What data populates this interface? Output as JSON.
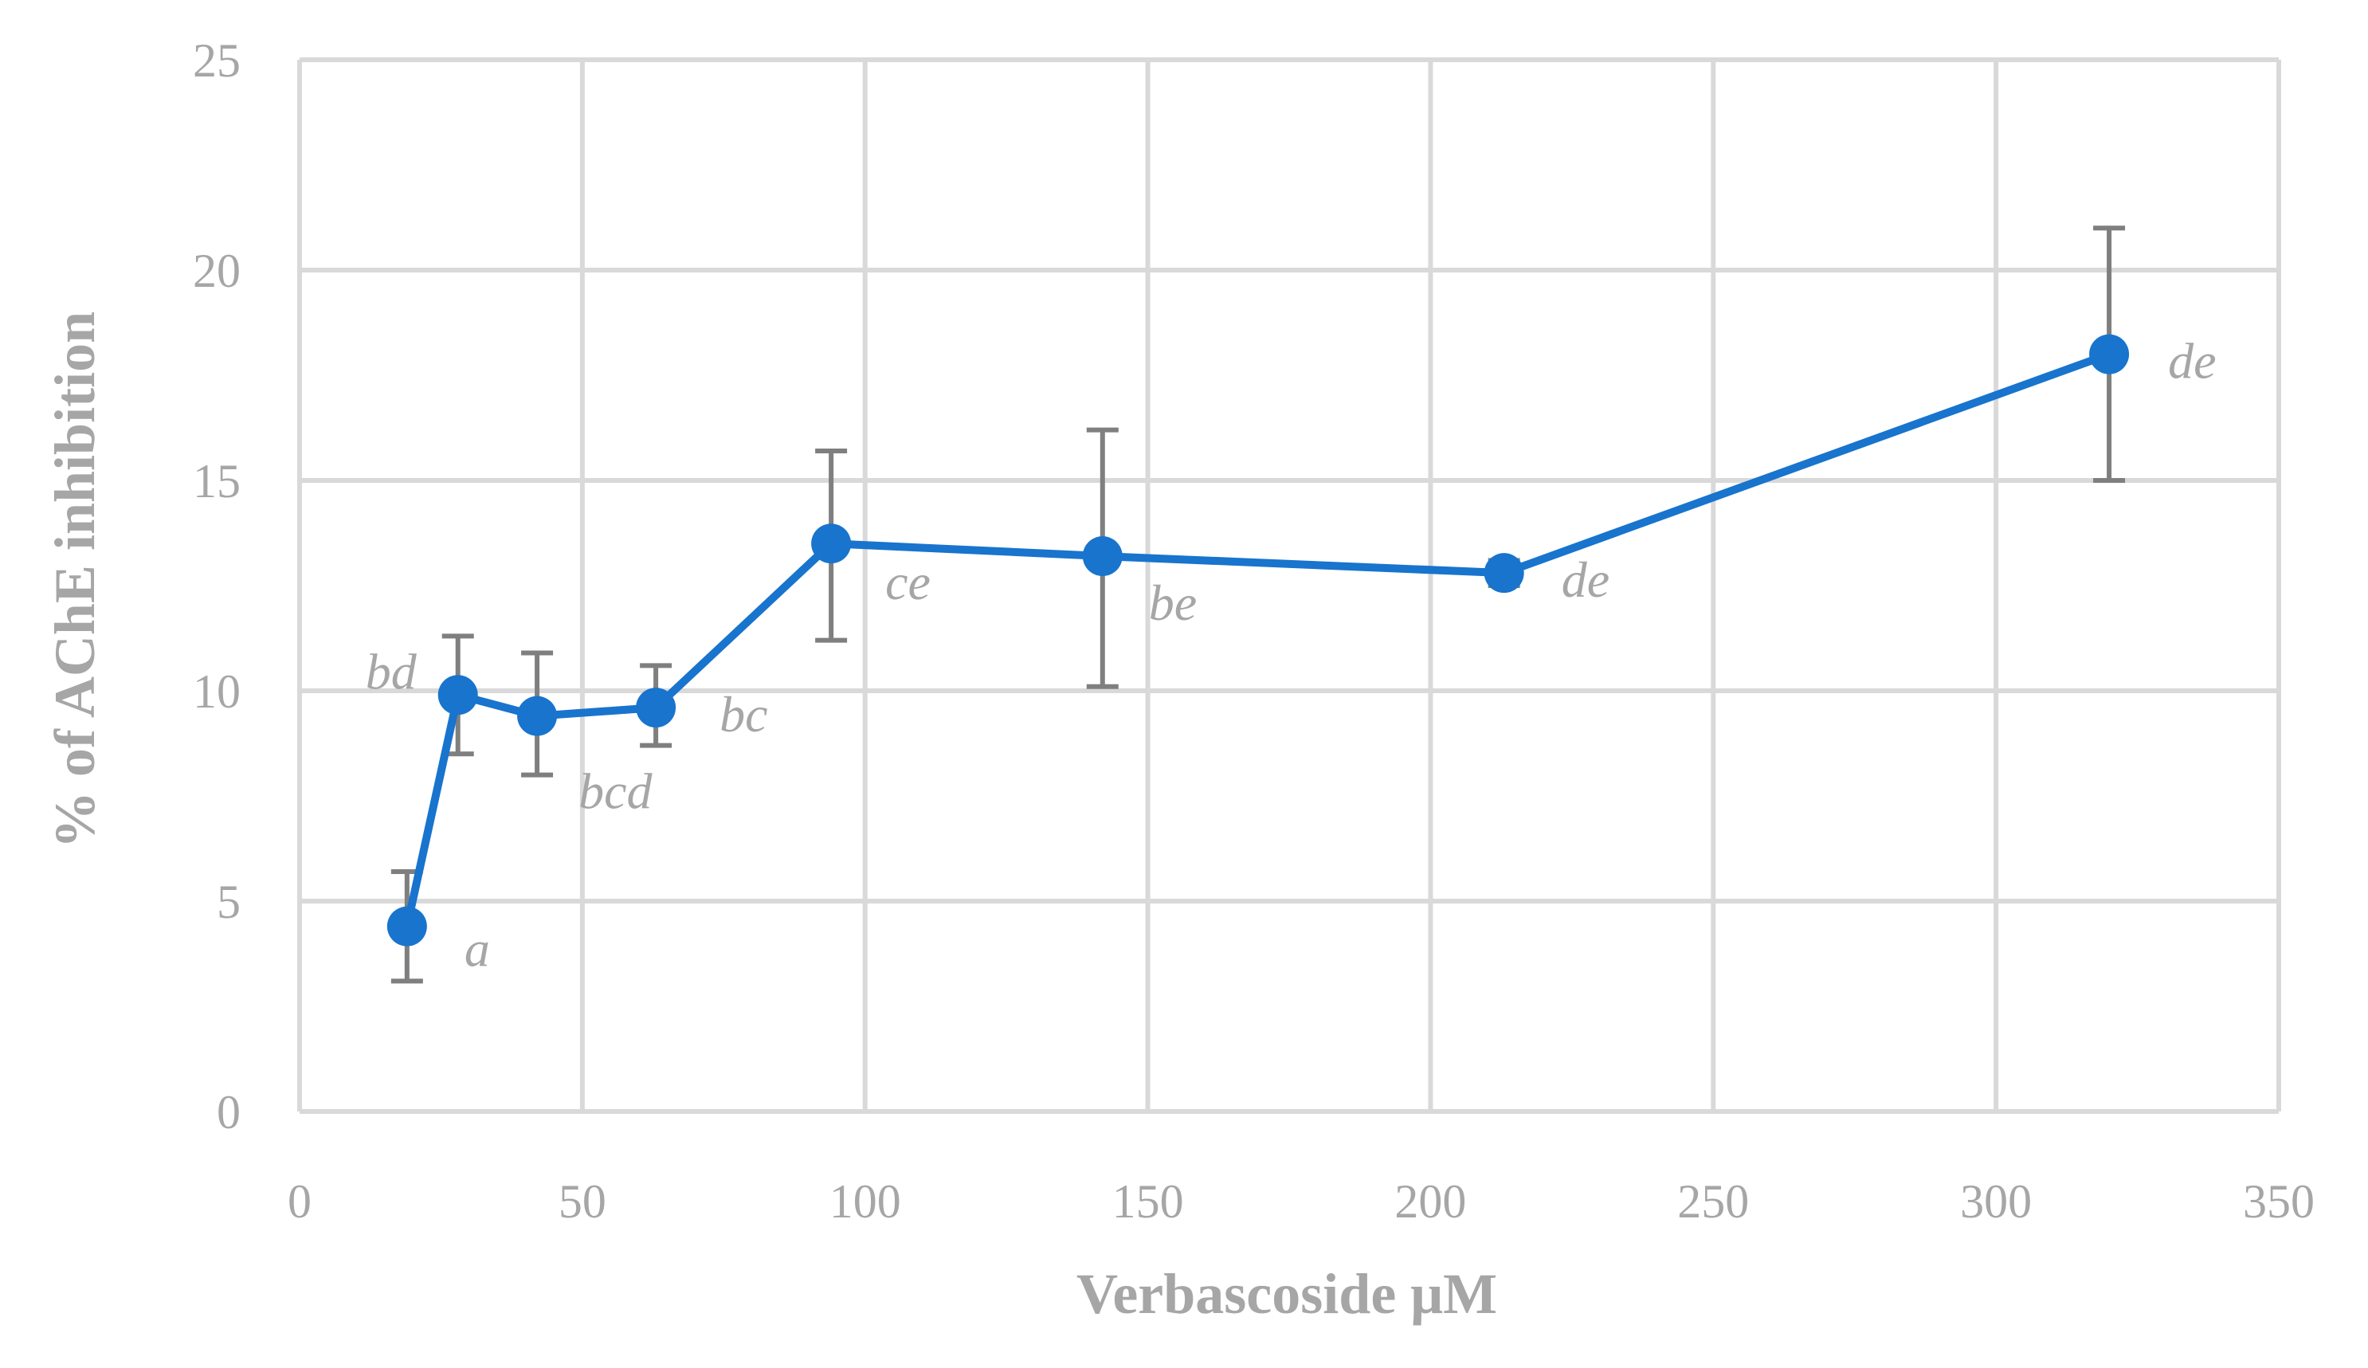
{
  "chart_data": {
    "type": "line",
    "title": "",
    "xlabel": "Verbascoside μM",
    "ylabel": "% of AChE inhibition",
    "xlim": [
      0,
      350
    ],
    "ylim": [
      0,
      25
    ],
    "xticks": [
      0,
      50,
      100,
      150,
      200,
      250,
      300,
      350
    ],
    "yticks": [
      0,
      5,
      10,
      15,
      20,
      25
    ],
    "xtick_labels": [
      "0",
      "50",
      "100",
      "150",
      "200",
      "250",
      "300",
      "350"
    ],
    "ytick_labels": [
      "0",
      "5",
      "10",
      "15",
      "20",
      "25"
    ],
    "grid": true,
    "legend": "none",
    "series": [
      {
        "color": "#1874cd",
        "points": [
          {
            "x": 19,
            "y": 4.4,
            "err_low": 3.1,
            "err_high": 5.7,
            "label": "a"
          },
          {
            "x": 28,
            "y": 9.9,
            "err_low": 8.5,
            "err_high": 11.3,
            "label": "bd"
          },
          {
            "x": 42,
            "y": 9.4,
            "err_low": 8.0,
            "err_high": 10.9,
            "label": "bcd"
          },
          {
            "x": 63,
            "y": 9.6,
            "err_low": 8.7,
            "err_high": 10.6,
            "label": "bc"
          },
          {
            "x": 94,
            "y": 13.5,
            "err_low": 11.2,
            "err_high": 15.7,
            "label": "ce"
          },
          {
            "x": 142,
            "y": 13.2,
            "err_low": 10.1,
            "err_high": 16.2,
            "label": "be"
          },
          {
            "x": 213,
            "y": 12.8,
            "err_low": 12.5,
            "err_high": 13.1,
            "label": "de"
          },
          {
            "x": 320,
            "y": 18.0,
            "err_low": 15.0,
            "err_high": 21.0,
            "label": "de"
          }
        ]
      }
    ],
    "colors": {
      "grid": "#d9d9d9",
      "errorbar": "#7f7f7f",
      "text": "#a6a6a6",
      "line": "#1874cd"
    }
  }
}
